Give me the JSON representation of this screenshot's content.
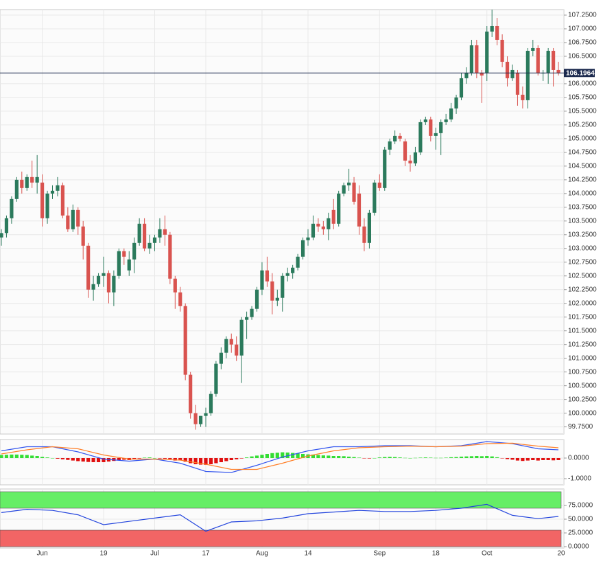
{
  "chart_data": [
    {
      "type": "candlestick",
      "xlim": [
        0,
        110
      ],
      "ylim": [
        99.62,
        107.35
      ],
      "yticks": [
        {
          "value": 99.75,
          "label": "99.7500"
        },
        {
          "value": 100.0,
          "label": "100.0000"
        },
        {
          "value": 100.25,
          "label": "100.2500"
        },
        {
          "value": 100.5,
          "label": "100.5000"
        },
        {
          "value": 100.75,
          "label": "100.7500"
        },
        {
          "value": 101.0,
          "label": "101.0000"
        },
        {
          "value": 101.25,
          "label": "101.2500"
        },
        {
          "value": 101.5,
          "label": "101.5000"
        },
        {
          "value": 101.75,
          "label": "101.7500"
        },
        {
          "value": 102.0,
          "label": "102.0000"
        },
        {
          "value": 102.25,
          "label": "102.2500"
        },
        {
          "value": 102.5,
          "label": "102.5000"
        },
        {
          "value": 102.75,
          "label": "102.7500"
        },
        {
          "value": 103.0,
          "label": "103.0000"
        },
        {
          "value": 103.25,
          "label": "103.2500"
        },
        {
          "value": 103.5,
          "label": "103.5000"
        },
        {
          "value": 103.75,
          "label": "103.7500"
        },
        {
          "value": 104.0,
          "label": "104.0000"
        },
        {
          "value": 104.25,
          "label": "104.2500"
        },
        {
          "value": 104.5,
          "label": "104.5000"
        },
        {
          "value": 104.75,
          "label": "104.7500"
        },
        {
          "value": 105.0,
          "label": "105.0000"
        },
        {
          "value": 105.25,
          "label": "105.2500"
        },
        {
          "value": 105.5,
          "label": "105.5000"
        },
        {
          "value": 105.75,
          "label": "105.7500"
        },
        {
          "value": 106.0,
          "label": "106.0000"
        },
        {
          "value": 106.5,
          "label": "106.5000"
        },
        {
          "value": 106.75,
          "label": "106.7500"
        },
        {
          "value": 107.0,
          "label": "107.0000"
        },
        {
          "value": 107.25,
          "label": "107.2500"
        }
      ],
      "grid": true,
      "up_color": "#2b7a5c",
      "down_color": "#d9534f",
      "last_price": 106.1964,
      "last_price_color": "#1d2b4f",
      "open": [
        103.2,
        103.28,
        103.55,
        103.9,
        104.25,
        104.1,
        104.3,
        104.2,
        104.2,
        103.55,
        104.0,
        104.05,
        104.15,
        103.6,
        103.35,
        103.7,
        103.4,
        103.05,
        102.25,
        102.35,
        102.5,
        102.55,
        102.2,
        102.5,
        102.95,
        102.6,
        102.8,
        103.1,
        103.45,
        103.0,
        103.1,
        103.2,
        103.35,
        103.25,
        102.45,
        102.2,
        101.95,
        100.7,
        100.0,
        99.8,
        99.95,
        100.0,
        100.35,
        100.9,
        101.1,
        101.35,
        101.25,
        101.05,
        101.7,
        101.75,
        101.9,
        102.25,
        102.6,
        102.4,
        102.05,
        102.1,
        102.5,
        102.55,
        102.65,
        102.85,
        103.15,
        103.2,
        103.45,
        103.4,
        103.35,
        103.7,
        103.45,
        104.0,
        104.15,
        104.2,
        104.0,
        103.4,
        103.1,
        103.65,
        104.2,
        104.1,
        104.8,
        104.95,
        105.05,
        104.95,
        104.6,
        104.55,
        104.75,
        105.3,
        105.35,
        105.05,
        105.1,
        105.3,
        105.35,
        105.55,
        105.75,
        106.1,
        106.2,
        106.7,
        106.2,
        106.2,
        106.95,
        107.05,
        106.8,
        106.4,
        106.1,
        106.2,
        105.8,
        105.7,
        106.6,
        106.65,
        106.2,
        106.2,
        106.6,
        106.25
      ],
      "high": [
        103.35,
        103.6,
        103.95,
        104.3,
        104.4,
        104.35,
        104.6,
        104.7,
        104.35,
        104.05,
        104.15,
        104.3,
        104.2,
        103.75,
        103.8,
        103.75,
        103.5,
        103.1,
        102.5,
        102.55,
        102.85,
        102.6,
        102.6,
        103.0,
        103.0,
        102.95,
        103.2,
        103.55,
        103.55,
        103.25,
        103.25,
        103.55,
        103.6,
        103.3,
        102.5,
        102.3,
        102.0,
        100.75,
        100.15,
        99.95,
        100.1,
        100.4,
        100.95,
        101.2,
        101.4,
        101.45,
        101.4,
        101.75,
        101.85,
        101.95,
        102.3,
        102.75,
        102.85,
        102.55,
        102.25,
        102.55,
        102.65,
        102.7,
        102.9,
        103.2,
        103.35,
        103.6,
        103.55,
        103.5,
        103.65,
        103.9,
        104.05,
        104.2,
        104.45,
        104.3,
        104.15,
        103.55,
        103.7,
        104.25,
        104.35,
        104.85,
        105.0,
        105.15,
        105.1,
        105.0,
        104.7,
        104.85,
        105.35,
        105.4,
        105.4,
        105.2,
        105.35,
        105.45,
        105.65,
        105.8,
        106.2,
        106.3,
        106.8,
        106.8,
        106.25,
        107.05,
        107.35,
        107.2,
        106.9,
        106.5,
        106.35,
        106.25,
        105.95,
        106.65,
        106.8,
        106.7,
        106.25,
        106.65,
        106.65,
        106.4
      ],
      "low": [
        103.05,
        103.2,
        103.45,
        103.85,
        104.0,
        104.05,
        104.1,
        104.0,
        103.4,
        103.45,
        103.9,
        103.95,
        103.55,
        103.3,
        103.3,
        103.25,
        102.8,
        102.1,
        102.05,
        102.3,
        102.3,
        102.0,
        101.95,
        102.45,
        102.7,
        102.5,
        102.55,
        103.05,
        102.95,
        102.9,
        102.95,
        103.1,
        103.05,
        102.35,
        101.9,
        101.85,
        100.6,
        99.9,
        99.7,
        99.75,
        99.75,
        99.95,
        100.3,
        100.8,
        101.0,
        101.1,
        100.95,
        100.55,
        101.35,
        101.7,
        101.85,
        102.15,
        102.3,
        101.8,
        101.95,
        101.85,
        102.4,
        102.45,
        102.6,
        102.8,
        103.05,
        103.15,
        103.3,
        103.25,
        103.15,
        103.35,
        103.4,
        103.95,
        104.05,
        103.8,
        103.25,
        102.95,
        103.0,
        103.6,
        104.05,
        104.05,
        104.7,
        104.9,
        104.95,
        104.5,
        104.4,
        104.5,
        104.7,
        105.25,
        104.95,
        104.8,
        104.7,
        105.25,
        105.3,
        105.45,
        105.7,
        106.0,
        106.15,
        106.1,
        105.65,
        106.05,
        106.85,
        106.7,
        106.3,
        105.95,
        106.05,
        105.6,
        105.55,
        105.55,
        106.5,
        106.15,
        106.05,
        106.0,
        105.95,
        106.15
      ],
      "close": [
        103.28,
        103.55,
        103.9,
        104.25,
        104.1,
        104.3,
        104.2,
        104.3,
        103.55,
        104.0,
        104.05,
        104.15,
        103.6,
        103.35,
        103.7,
        103.4,
        103.05,
        102.25,
        102.35,
        102.5,
        102.55,
        102.2,
        102.5,
        102.95,
        102.85,
        102.8,
        103.1,
        103.45,
        103.0,
        103.1,
        103.2,
        103.35,
        103.25,
        102.45,
        102.2,
        101.95,
        100.7,
        100.0,
        99.8,
        99.95,
        100.0,
        100.35,
        100.9,
        101.1,
        101.35,
        101.25,
        101.05,
        101.7,
        101.75,
        101.9,
        102.25,
        102.6,
        102.4,
        102.05,
        102.1,
        102.5,
        102.55,
        102.65,
        102.85,
        103.15,
        103.2,
        103.45,
        103.4,
        103.35,
        103.55,
        103.45,
        104.0,
        104.15,
        104.2,
        103.85,
        103.4,
        103.1,
        103.65,
        104.2,
        104.1,
        104.8,
        104.95,
        105.05,
        105.0,
        104.6,
        104.55,
        104.75,
        105.3,
        105.35,
        105.05,
        105.1,
        105.3,
        105.35,
        105.55,
        105.75,
        106.1,
        106.2,
        106.7,
        106.2,
        106.15,
        106.95,
        107.05,
        106.8,
        106.4,
        106.1,
        106.25,
        105.8,
        105.7,
        106.6,
        106.65,
        106.2,
        106.2,
        106.6,
        106.25,
        106.2
      ]
    },
    {
      "type": "macd",
      "xlim": [
        0,
        110
      ],
      "ylim": [
        -1.3,
        0.9
      ],
      "yticks": [
        {
          "value": -1,
          "label": "-1.0000"
        },
        {
          "value": 0,
          "label": "0.0000"
        }
      ],
      "lines": [
        {
          "color": "#3355ee",
          "x": [
            0,
            5,
            10,
            15,
            20,
            25,
            30,
            35,
            40,
            45,
            50,
            55,
            60,
            65,
            70,
            75,
            80,
            85,
            90,
            95,
            100,
            105,
            109
          ],
          "values": [
            0.35,
            0.55,
            0.55,
            0.3,
            -0.05,
            -0.15,
            -0.05,
            -0.25,
            -0.65,
            -0.7,
            -0.35,
            0.05,
            0.35,
            0.55,
            0.55,
            0.6,
            0.6,
            0.55,
            0.6,
            0.8,
            0.7,
            0.45,
            0.4
          ]
        },
        {
          "color": "#ff7f27",
          "x": [
            0,
            5,
            10,
            15,
            20,
            25,
            30,
            35,
            40,
            45,
            50,
            55,
            60,
            65,
            70,
            75,
            80,
            85,
            90,
            95,
            100,
            105,
            109
          ],
          "values": [
            0.2,
            0.4,
            0.55,
            0.45,
            0.15,
            -0.05,
            -0.05,
            -0.1,
            -0.3,
            -0.55,
            -0.55,
            -0.25,
            0.1,
            0.35,
            0.5,
            0.55,
            0.58,
            0.55,
            0.58,
            0.7,
            0.72,
            0.58,
            0.5
          ]
        }
      ],
      "histogram": {
        "up_color": "#33dd33",
        "down_color": "#e01010",
        "values": [
          0.15,
          0.16,
          0.17,
          0.17,
          0.16,
          0.15,
          0.12,
          0.1,
          0.06,
          0.03,
          0.0,
          -0.03,
          -0.06,
          -0.09,
          -0.12,
          -0.15,
          -0.17,
          -0.19,
          -0.2,
          -0.2,
          -0.2,
          -0.17,
          -0.14,
          -0.11,
          -0.08,
          -0.1,
          -0.06,
          -0.02,
          0.02,
          0.03,
          0.0,
          -0.02,
          -0.03,
          -0.05,
          -0.12,
          -0.1,
          -0.18,
          -0.25,
          -0.3,
          -0.32,
          -0.33,
          -0.3,
          -0.25,
          -0.2,
          -0.15,
          -0.1,
          -0.06,
          -0.02,
          0.03,
          0.08,
          0.12,
          0.16,
          0.2,
          0.24,
          0.26,
          0.28,
          0.27,
          0.25,
          0.23,
          0.2,
          0.18,
          0.17,
          0.15,
          0.13,
          0.12,
          0.1,
          0.1,
          0.09,
          0.07,
          0.05,
          0.02,
          -0.01,
          -0.02,
          0.0,
          0.03,
          0.05,
          0.06,
          0.05,
          0.03,
          0.01,
          0.0,
          0.01,
          0.02,
          0.03,
          0.02,
          0.01,
          0.01,
          0.02,
          0.04,
          0.05,
          0.07,
          0.08,
          0.09,
          0.1,
          0.09,
          0.1,
          0.08,
          0.04,
          -0.01,
          -0.05,
          -0.08,
          -0.12,
          -0.14,
          -0.12,
          -0.1,
          -0.12,
          -0.1,
          -0.1,
          -0.11,
          -0.1
        ]
      }
    },
    {
      "type": "rsi",
      "xlim": [
        0,
        110
      ],
      "ylim": [
        -2.5,
        105
      ],
      "yticks": [
        {
          "value": 0,
          "label": "0.0000"
        },
        {
          "value": 25,
          "label": "25.0000"
        },
        {
          "value": 50,
          "label": "50.0000"
        },
        {
          "value": 75,
          "label": "75.0000"
        }
      ],
      "xticks": [
        {
          "value": 8,
          "label": "Jun"
        },
        {
          "value": 20,
          "label": "19"
        },
        {
          "value": 30,
          "label": "Jul"
        },
        {
          "value": 40,
          "label": "17"
        },
        {
          "value": 51,
          "label": "Aug"
        },
        {
          "value": 60,
          "label": "14"
        },
        {
          "value": 74,
          "label": "Sep"
        },
        {
          "value": 85,
          "label": "18"
        },
        {
          "value": 95,
          "label": "Oct"
        },
        {
          "value": 110,
          "label": "20"
        }
      ],
      "bands": [
        {
          "from": 70,
          "to": 100,
          "color": "#66ee66"
        },
        {
          "from": 0,
          "to": 30,
          "color": "#f26565"
        }
      ],
      "color": "#2244dd",
      "x": [
        0,
        5,
        10,
        15,
        20,
        25,
        30,
        35,
        40,
        45,
        50,
        55,
        60,
        65,
        70,
        75,
        80,
        85,
        90,
        95,
        100,
        105,
        109
      ],
      "values": [
        62,
        68,
        66,
        58,
        40,
        46,
        52,
        58,
        28,
        45,
        47,
        52,
        60,
        63,
        66,
        64,
        64,
        66,
        70,
        77,
        57,
        51,
        55
      ]
    }
  ]
}
